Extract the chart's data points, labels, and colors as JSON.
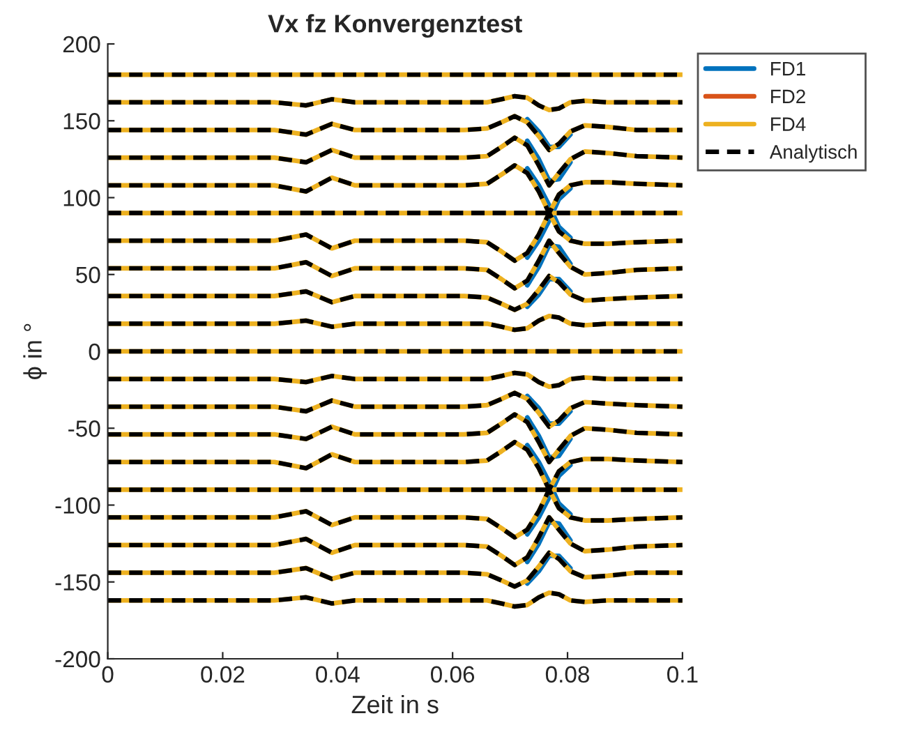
{
  "chart_data": {
    "type": "line",
    "title": "Vx fz Konvergenztest",
    "xlabel": "Zeit in s",
    "ylabel": "ϕ in °",
    "xlim": [
      0,
      0.1
    ],
    "xticks": [
      0,
      0.02,
      0.04,
      0.06,
      0.08,
      0.1
    ],
    "ylim": [
      -200,
      200
    ],
    "yticks": [
      -200,
      -150,
      -100,
      -50,
      0,
      50,
      100,
      150,
      200
    ],
    "legend": "top right",
    "x": [
      0,
      0.029,
      0.0345,
      0.039,
      0.043,
      0.062,
      0.066,
      0.0685,
      0.0708,
      0.073,
      0.075,
      0.0768,
      0.0785,
      0.0805,
      0.083,
      0.087,
      0.092,
      0.1
    ],
    "series": [
      {
        "name": "FD1",
        "color": "#0072bd",
        "line_style": "solid",
        "values": [
          null,
          null,
          null,
          null,
          null,
          null,
          null,
          null,
          null,
          151,
          143,
          133,
          133,
          141,
          null,
          null,
          null,
          null
        ]
      },
      {
        "color": "#0072bd",
        "line_style": "solid",
        "values": [
          null,
          null,
          null,
          null,
          null,
          null,
          null,
          null,
          null,
          137,
          125,
          111,
          112,
          123,
          null,
          null,
          null,
          null
        ]
      },
      {
        "color": "#0072bd",
        "line_style": "solid",
        "values": [
          null,
          null,
          null,
          null,
          null,
          null,
          null,
          null,
          null,
          119,
          108,
          95,
          81,
          74,
          null,
          null,
          null,
          null
        ]
      },
      {
        "color": "#0072bd",
        "line_style": "solid",
        "values": [
          null,
          null,
          null,
          null,
          null,
          null,
          null,
          null,
          null,
          61,
          72,
          85,
          99,
          106,
          null,
          null,
          null,
          null
        ]
      },
      {
        "color": "#0072bd",
        "line_style": "solid",
        "values": [
          null,
          null,
          null,
          null,
          null,
          null,
          null,
          null,
          null,
          43,
          55,
          69,
          68,
          57,
          null,
          null,
          null,
          null
        ]
      },
      {
        "color": "#0072bd",
        "line_style": "solid",
        "values": [
          null,
          null,
          null,
          null,
          null,
          null,
          null,
          null,
          null,
          29,
          37,
          47,
          47,
          39,
          null,
          null,
          null,
          null
        ]
      },
      {
        "color": "#0072bd",
        "line_style": "solid",
        "values": [
          null,
          null,
          null,
          null,
          null,
          null,
          null,
          null,
          null,
          -29,
          -37,
          -47,
          -47,
          -39,
          null,
          null,
          null,
          null
        ]
      },
      {
        "color": "#0072bd",
        "line_style": "solid",
        "values": [
          null,
          null,
          null,
          null,
          null,
          null,
          null,
          null,
          null,
          -43,
          -55,
          -69,
          -68,
          -57,
          null,
          null,
          null,
          null
        ]
      },
      {
        "color": "#0072bd",
        "line_style": "solid",
        "values": [
          null,
          null,
          null,
          null,
          null,
          null,
          null,
          null,
          null,
          -61,
          -72,
          -85,
          -99,
          -106,
          null,
          null,
          null,
          null
        ]
      },
      {
        "color": "#0072bd",
        "line_style": "solid",
        "values": [
          null,
          null,
          null,
          null,
          null,
          null,
          null,
          null,
          null,
          -119,
          -108,
          -95,
          -81,
          -74,
          null,
          null,
          null,
          null
        ]
      },
      {
        "color": "#0072bd",
        "line_style": "solid",
        "values": [
          null,
          null,
          null,
          null,
          null,
          null,
          null,
          null,
          null,
          -137,
          -125,
          -111,
          -112,
          -123,
          null,
          null,
          null,
          null
        ]
      },
      {
        "color": "#0072bd",
        "line_style": "solid",
        "values": [
          null,
          null,
          null,
          null,
          null,
          null,
          null,
          null,
          null,
          -151,
          -143,
          -133,
          -133,
          -141,
          null,
          null,
          null,
          null
        ]
      },
      {
        "name": "FD2",
        "color": "#d95319",
        "line_style": "solid",
        "values": [
          null,
          null,
          null,
          null,
          null,
          null,
          null,
          null,
          null,
          null,
          null,
          null,
          null,
          null,
          null,
          null,
          null,
          null
        ]
      },
      {
        "name": "FD4",
        "color": "#edb120",
        "line_style": "solid",
        "values": [
          180,
          180,
          180,
          180,
          180,
          180,
          180,
          180,
          180,
          180,
          180,
          180,
          180,
          180,
          180,
          180,
          180,
          180
        ]
      },
      {
        "color": "#edb120",
        "line_style": "solid",
        "values": [
          162,
          162,
          160,
          164,
          162,
          162,
          162,
          164,
          166,
          165,
          160,
          157,
          158,
          162,
          163,
          162,
          162,
          162
        ]
      },
      {
        "color": "#edb120",
        "line_style": "solid",
        "values": [
          144,
          144,
          141,
          148,
          144,
          144,
          145,
          149,
          153,
          149,
          140,
          131,
          135,
          143,
          147,
          146,
          144,
          144
        ]
      },
      {
        "color": "#edb120",
        "line_style": "solid",
        "values": [
          126,
          126,
          123,
          131,
          126,
          126,
          127,
          133,
          139,
          134,
          121,
          108,
          116,
          125,
          130,
          129,
          127,
          126
        ]
      },
      {
        "color": "#edb120",
        "line_style": "solid",
        "values": [
          108,
          108,
          104,
          113,
          108,
          108,
          109,
          115,
          121,
          116,
          104,
          90,
          78,
          72,
          70,
          70,
          71,
          72
        ]
      },
      {
        "color": "#edb120",
        "line_style": "solid",
        "values": [
          90,
          90,
          90,
          90,
          90,
          90,
          90,
          90,
          90,
          90,
          90,
          90,
          90,
          90,
          90,
          90,
          90,
          90
        ]
      },
      {
        "color": "#edb120",
        "line_style": "solid",
        "values": [
          72,
          72,
          76,
          67,
          72,
          72,
          71,
          65,
          59,
          64,
          76,
          90,
          102,
          108,
          110,
          110,
          109,
          108
        ]
      },
      {
        "color": "#edb120",
        "line_style": "solid",
        "values": [
          54,
          54,
          58,
          49,
          54,
          54,
          53,
          47,
          41,
          46,
          59,
          72,
          64,
          55,
          50,
          51,
          53,
          54
        ]
      },
      {
        "color": "#edb120",
        "line_style": "solid",
        "values": [
          36,
          36,
          39,
          32,
          36,
          36,
          35,
          31,
          27,
          31,
          40,
          49,
          45,
          37,
          33,
          34,
          35,
          36
        ]
      },
      {
        "color": "#edb120",
        "line_style": "solid",
        "values": [
          18,
          18,
          20,
          16,
          18,
          18,
          18,
          16,
          14,
          15,
          20,
          23,
          22,
          18,
          17,
          18,
          18,
          18
        ]
      },
      {
        "color": "#edb120",
        "line_style": "solid",
        "values": [
          0,
          0,
          0,
          0,
          0,
          0,
          0,
          0,
          0,
          0,
          0,
          0,
          0,
          0,
          0,
          0,
          0,
          0
        ]
      },
      {
        "color": "#edb120",
        "line_style": "solid",
        "values": [
          -18,
          -18,
          -20,
          -16,
          -18,
          -18,
          -18,
          -16,
          -14,
          -15,
          -20,
          -23,
          -22,
          -18,
          -17,
          -18,
          -18,
          -18
        ]
      },
      {
        "color": "#edb120",
        "line_style": "solid",
        "values": [
          -36,
          -36,
          -39,
          -32,
          -36,
          -36,
          -35,
          -31,
          -27,
          -31,
          -40,
          -49,
          -45,
          -37,
          -33,
          -34,
          -35,
          -36
        ]
      },
      {
        "color": "#edb120",
        "line_style": "solid",
        "values": [
          -54,
          -54,
          -57,
          -49,
          -54,
          -54,
          -53,
          -47,
          -41,
          -46,
          -59,
          -72,
          -64,
          -55,
          -50,
          -51,
          -53,
          -54
        ]
      },
      {
        "color": "#edb120",
        "line_style": "solid",
        "values": [
          -72,
          -72,
          -76,
          -67,
          -72,
          -72,
          -71,
          -65,
          -59,
          -64,
          -76,
          -90,
          -102,
          -108,
          -110,
          -110,
          -109,
          -108
        ]
      },
      {
        "color": "#edb120",
        "line_style": "solid",
        "values": [
          -90,
          -90,
          -90,
          -90,
          -90,
          -90,
          -90,
          -90,
          -90,
          -90,
          -90,
          -90,
          -90,
          -90,
          -90,
          -90,
          -90,
          -90
        ]
      },
      {
        "color": "#edb120",
        "line_style": "solid",
        "values": [
          -108,
          -108,
          -104,
          -113,
          -108,
          -108,
          -109,
          -115,
          -121,
          -116,
          -104,
          -90,
          -78,
          -72,
          -70,
          -70,
          -71,
          -72
        ]
      },
      {
        "color": "#edb120",
        "line_style": "solid",
        "values": [
          -126,
          -126,
          -122,
          -131,
          -126,
          -126,
          -127,
          -133,
          -139,
          -134,
          -121,
          -108,
          -116,
          -125,
          -130,
          -129,
          -127,
          -126
        ]
      },
      {
        "color": "#edb120",
        "line_style": "solid",
        "values": [
          -144,
          -144,
          -141,
          -148,
          -144,
          -144,
          -145,
          -149,
          -153,
          -149,
          -140,
          -131,
          -135,
          -143,
          -147,
          -146,
          -144,
          -144
        ]
      },
      {
        "color": "#edb120",
        "line_style": "solid",
        "values": [
          -162,
          -162,
          -160,
          -164,
          -162,
          -162,
          -162,
          -164,
          -166,
          -165,
          -160,
          -157,
          -158,
          -162,
          -163,
          -162,
          -162,
          -162
        ]
      },
      {
        "name": "Analytisch",
        "color": "#000000",
        "line_style": "dashed",
        "values": [
          180,
          180,
          180,
          180,
          180,
          180,
          180,
          180,
          180,
          180,
          180,
          180,
          180,
          180,
          180,
          180,
          180,
          180
        ]
      },
      {
        "color": "#000000",
        "line_style": "dashed",
        "values": [
          162,
          162,
          160,
          164,
          162,
          162,
          162,
          164,
          166,
          165,
          160,
          157,
          158,
          162,
          163,
          162,
          162,
          162
        ]
      },
      {
        "color": "#000000",
        "line_style": "dashed",
        "values": [
          144,
          144,
          141,
          148,
          144,
          144,
          145,
          149,
          153,
          149,
          140,
          131,
          135,
          143,
          147,
          146,
          144,
          144
        ]
      },
      {
        "color": "#000000",
        "line_style": "dashed",
        "values": [
          126,
          126,
          123,
          131,
          126,
          126,
          127,
          133,
          139,
          134,
          121,
          108,
          116,
          125,
          130,
          129,
          127,
          126
        ]
      },
      {
        "color": "#000000",
        "line_style": "dashed",
        "values": [
          108,
          108,
          104,
          113,
          108,
          108,
          109,
          115,
          121,
          116,
          104,
          90,
          78,
          72,
          70,
          70,
          71,
          72
        ]
      },
      {
        "color": "#000000",
        "line_style": "dashed",
        "values": [
          90,
          90,
          90,
          90,
          90,
          90,
          90,
          90,
          90,
          90,
          90,
          90,
          90,
          90,
          90,
          90,
          90,
          90
        ]
      },
      {
        "color": "#000000",
        "line_style": "dashed",
        "values": [
          72,
          72,
          76,
          67,
          72,
          72,
          71,
          65,
          59,
          64,
          76,
          90,
          102,
          108,
          110,
          110,
          109,
          108
        ]
      },
      {
        "color": "#000000",
        "line_style": "dashed",
        "values": [
          54,
          54,
          58,
          49,
          54,
          54,
          53,
          47,
          41,
          46,
          59,
          72,
          64,
          55,
          50,
          51,
          53,
          54
        ]
      },
      {
        "color": "#000000",
        "line_style": "dashed",
        "values": [
          36,
          36,
          39,
          32,
          36,
          36,
          35,
          31,
          27,
          31,
          40,
          49,
          45,
          37,
          33,
          34,
          35,
          36
        ]
      },
      {
        "color": "#000000",
        "line_style": "dashed",
        "values": [
          18,
          18,
          20,
          16,
          18,
          18,
          18,
          16,
          14,
          15,
          20,
          23,
          22,
          18,
          17,
          18,
          18,
          18
        ]
      },
      {
        "color": "#000000",
        "line_style": "dashed",
        "values": [
          0,
          0,
          0,
          0,
          0,
          0,
          0,
          0,
          0,
          0,
          0,
          0,
          0,
          0,
          0,
          0,
          0,
          0
        ]
      },
      {
        "color": "#000000",
        "line_style": "dashed",
        "values": [
          -18,
          -18,
          -20,
          -16,
          -18,
          -18,
          -18,
          -16,
          -14,
          -15,
          -20,
          -23,
          -22,
          -18,
          -17,
          -18,
          -18,
          -18
        ]
      },
      {
        "color": "#000000",
        "line_style": "dashed",
        "values": [
          -36,
          -36,
          -39,
          -32,
          -36,
          -36,
          -35,
          -31,
          -27,
          -31,
          -40,
          -49,
          -45,
          -37,
          -33,
          -34,
          -35,
          -36
        ]
      },
      {
        "color": "#000000",
        "line_style": "dashed",
        "values": [
          -54,
          -54,
          -57,
          -49,
          -54,
          -54,
          -53,
          -47,
          -41,
          -46,
          -59,
          -72,
          -64,
          -55,
          -50,
          -51,
          -53,
          -54
        ]
      },
      {
        "color": "#000000",
        "line_style": "dashed",
        "values": [
          -72,
          -72,
          -76,
          -67,
          -72,
          -72,
          -71,
          -65,
          -59,
          -64,
          -76,
          -90,
          -102,
          -108,
          -110,
          -110,
          -109,
          -108
        ]
      },
      {
        "color": "#000000",
        "line_style": "dashed",
        "values": [
          -90,
          -90,
          -90,
          -90,
          -90,
          -90,
          -90,
          -90,
          -90,
          -90,
          -90,
          -90,
          -90,
          -90,
          -90,
          -90,
          -90,
          -90
        ]
      },
      {
        "color": "#000000",
        "line_style": "dashed",
        "values": [
          -108,
          -108,
          -104,
          -113,
          -108,
          -108,
          -109,
          -115,
          -121,
          -116,
          -104,
          -90,
          -78,
          -72,
          -70,
          -70,
          -71,
          -72
        ]
      },
      {
        "color": "#000000",
        "line_style": "dashed",
        "values": [
          -126,
          -126,
          -122,
          -131,
          -126,
          -126,
          -127,
          -133,
          -139,
          -134,
          -121,
          -108,
          -116,
          -125,
          -130,
          -129,
          -127,
          -126
        ]
      },
      {
        "color": "#000000",
        "line_style": "dashed",
        "values": [
          -144,
          -144,
          -141,
          -148,
          -144,
          -144,
          -145,
          -149,
          -153,
          -149,
          -140,
          -131,
          -135,
          -143,
          -147,
          -146,
          -144,
          -144
        ]
      },
      {
        "color": "#000000",
        "line_style": "dashed",
        "values": [
          -162,
          -162,
          -160,
          -164,
          -162,
          -162,
          -162,
          -164,
          -166,
          -165,
          -160,
          -157,
          -158,
          -162,
          -163,
          -162,
          -162,
          -162
        ]
      }
    ]
  }
}
